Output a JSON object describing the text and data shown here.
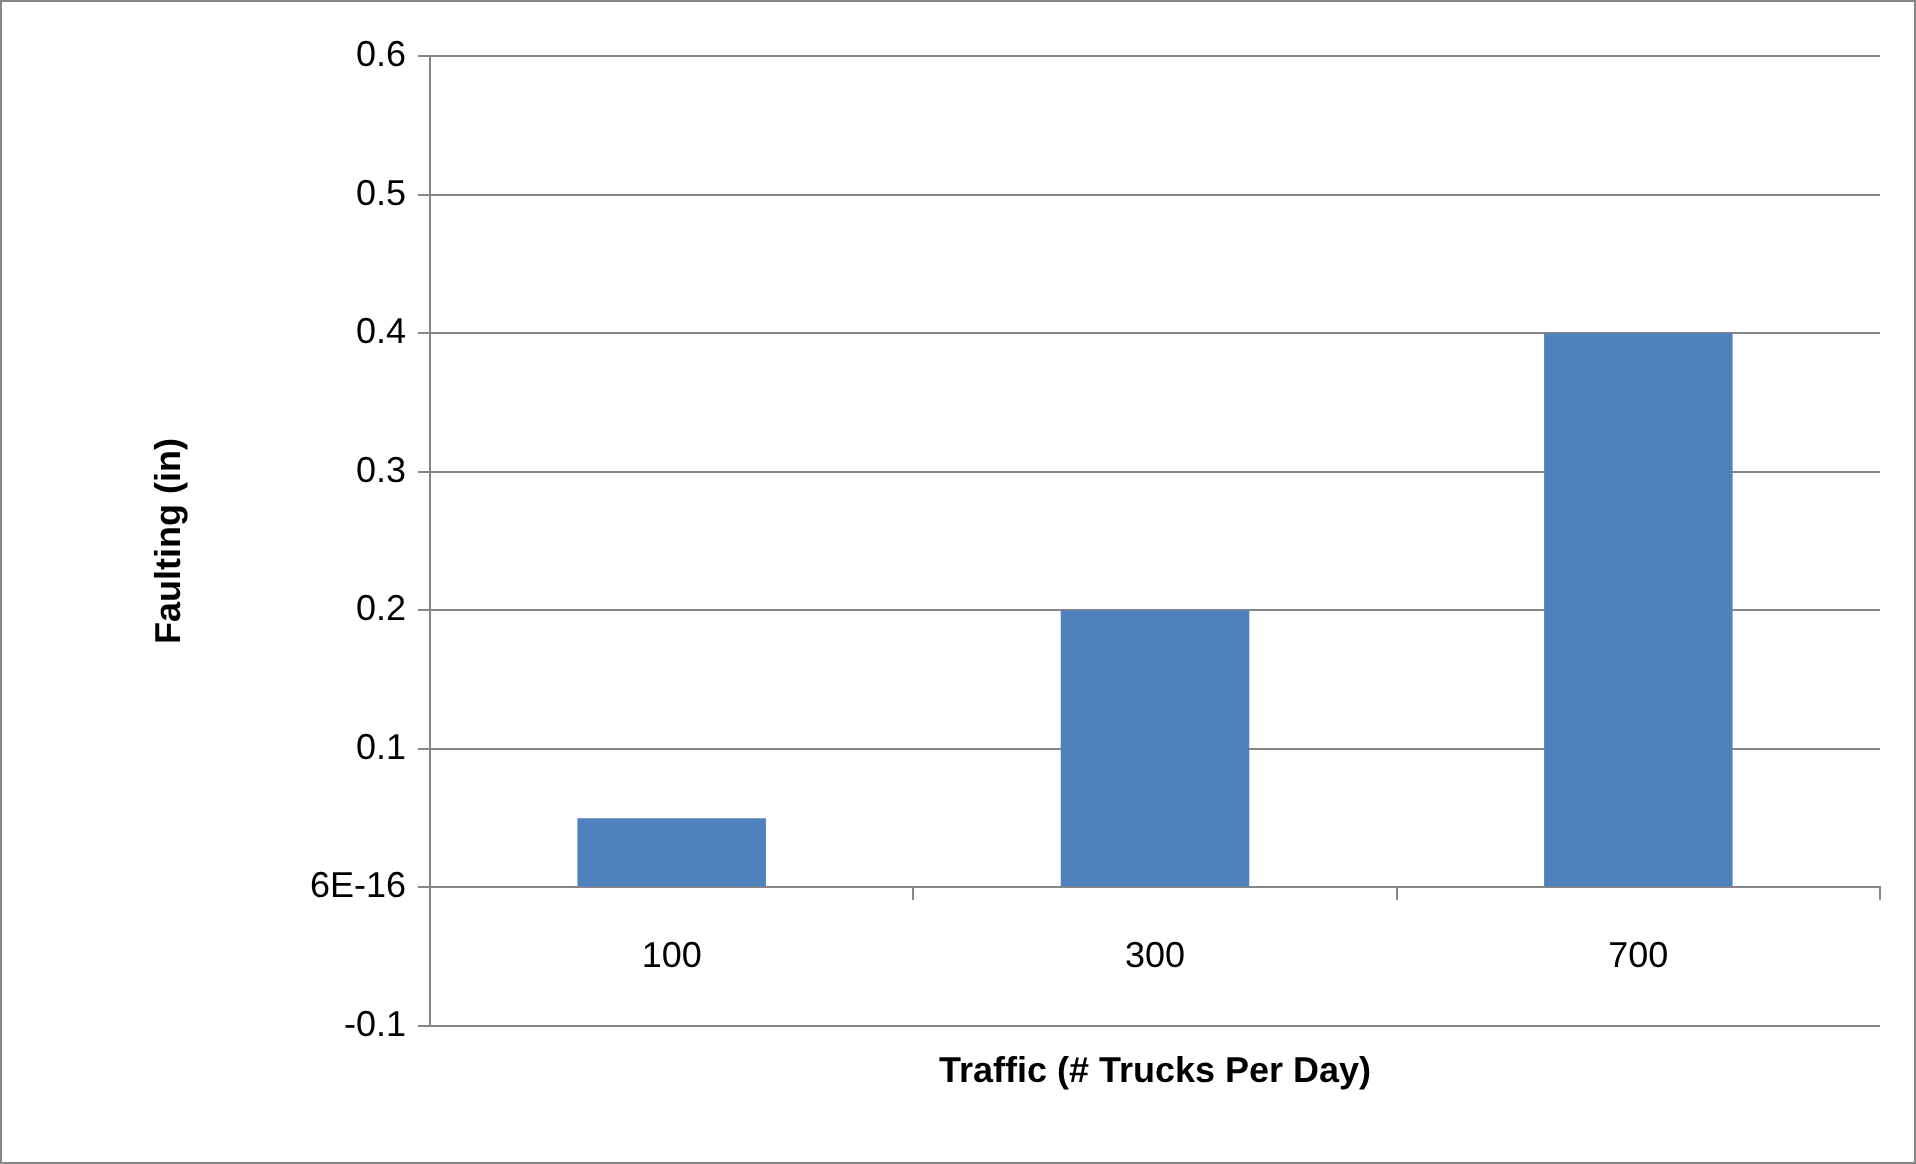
{
  "chart_data": {
    "type": "bar",
    "xlabel": "Traffic (# Trucks Per Day)",
    "ylabel": "Faulting (in)",
    "categories": [
      "100",
      "300",
      "700"
    ],
    "values": [
      0.05,
      0.2,
      0.4
    ],
    "color": "#4f81bd",
    "ylim": [
      -0.1,
      0.6
    ],
    "yticks": [
      -0.1,
      {
        "value": 0,
        "label": "6E-16"
      },
      0.1,
      0.2,
      0.3,
      0.4,
      0.5,
      0.6
    ],
    "grid": "y",
    "legend": false
  }
}
